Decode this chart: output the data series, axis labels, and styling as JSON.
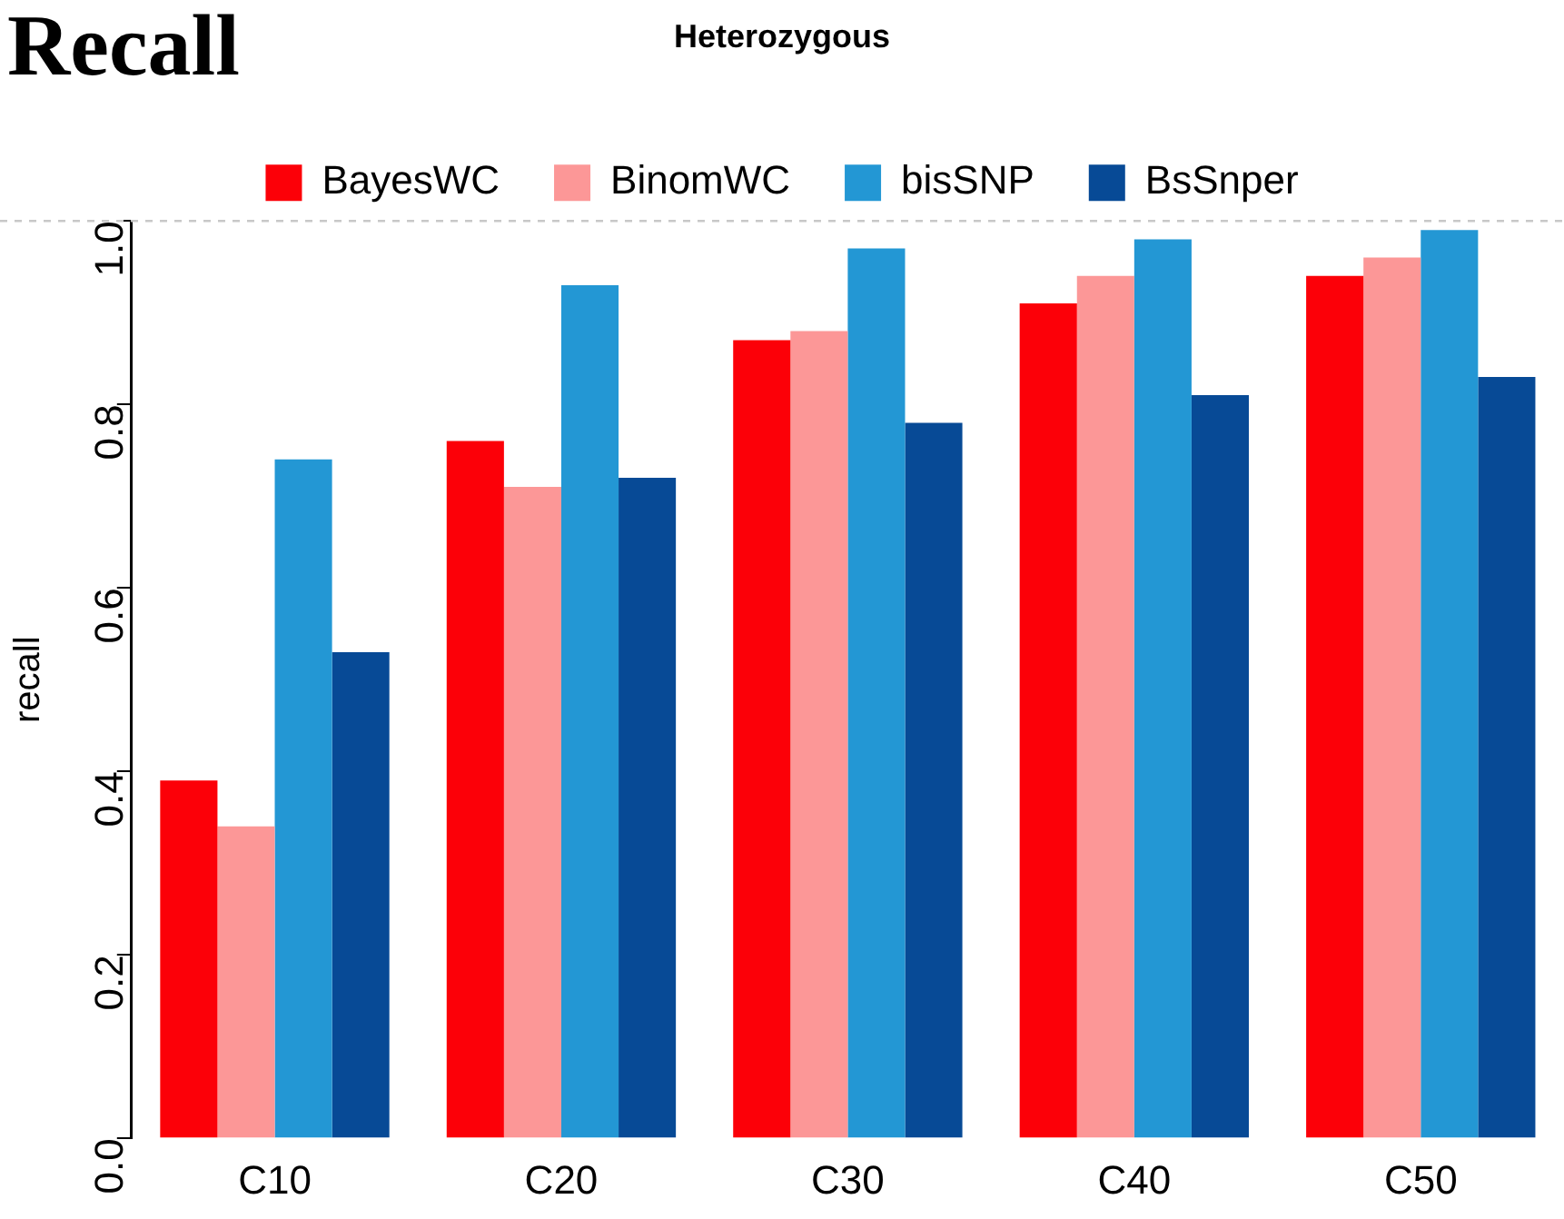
{
  "chart_data": {
    "type": "bar",
    "title": "Heterozygous",
    "ylabel": "recall",
    "annotations": [
      "Recall"
    ],
    "categories": [
      "C10",
      "C20",
      "C30",
      "C40",
      "C50"
    ],
    "series": [
      {
        "name": "BayesWC",
        "color": "#fc0008",
        "values": [
          0.39,
          0.76,
          0.87,
          0.91,
          0.94
        ]
      },
      {
        "name": "BinomWC",
        "color": "#fc9797",
        "values": [
          0.34,
          0.71,
          0.88,
          0.94,
          0.96
        ]
      },
      {
        "name": "bisSNP",
        "color": "#2397d4",
        "values": [
          0.74,
          0.93,
          0.97,
          0.98,
          0.99
        ]
      },
      {
        "name": "BsSnper",
        "color": "#074a96",
        "values": [
          0.53,
          0.72,
          0.78,
          0.81,
          0.83
        ]
      }
    ],
    "ylim": [
      0,
      1
    ],
    "yticks": [
      {
        "value": 0,
        "label": "0.0"
      },
      {
        "value": 0.2,
        "label": "0.2"
      },
      {
        "value": 0.4,
        "label": "0.4"
      },
      {
        "value": 0.6,
        "label": "0.6"
      },
      {
        "value": 0.8,
        "label": "0.8"
      },
      {
        "value": 1,
        "label": "1.0"
      }
    ],
    "ref_lines": [
      {
        "axis": "y",
        "value": 1,
        "color": "#c8c8c8",
        "line_style": "dashed"
      }
    ],
    "grid": false,
    "legend": "top"
  }
}
